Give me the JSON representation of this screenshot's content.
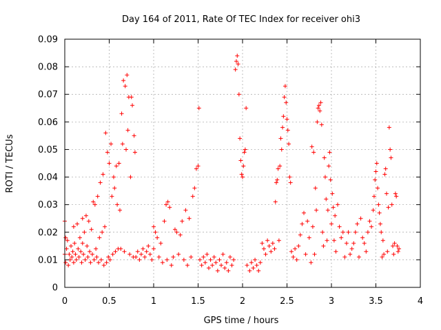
{
  "chart_data": {
    "type": "scatter",
    "title": "Day 164 of 2011, Rate Of TEC Index for receiver ohi3",
    "xlabel": "GPS time / hours",
    "ylabel": "ROTI / TECUs",
    "xlim": [
      0,
      4
    ],
    "ylim": [
      0,
      0.09
    ],
    "x_ticks": [
      "0",
      "0.5",
      "1",
      "1.5",
      "2",
      "2.5",
      "3",
      "3.5",
      "4"
    ],
    "y_ticks": [
      "0",
      "0.01",
      "0.02",
      "0.03",
      "0.04",
      "0.05",
      "0.06",
      "0.07",
      "0.08",
      "0.09"
    ],
    "grid": true,
    "marker": "+",
    "point_color": "#ff0000",
    "series": [
      {
        "name": "ROTI",
        "points": [
          [
            0.0,
            0.024
          ],
          [
            0.0,
            0.012
          ],
          [
            0.01,
            0.018
          ],
          [
            0.01,
            0.009
          ],
          [
            0.02,
            0.014
          ],
          [
            0.03,
            0.017
          ],
          [
            0.04,
            0.008
          ],
          [
            0.05,
            0.012
          ],
          [
            0.06,
            0.01
          ],
          [
            0.07,
            0.015
          ],
          [
            0.08,
            0.011
          ],
          [
            0.09,
            0.013
          ],
          [
            0.1,
            0.022
          ],
          [
            0.1,
            0.009
          ],
          [
            0.11,
            0.016
          ],
          [
            0.12,
            0.012
          ],
          [
            0.13,
            0.01
          ],
          [
            0.14,
            0.023
          ],
          [
            0.15,
            0.014
          ],
          [
            0.16,
            0.011
          ],
          [
            0.17,
            0.018
          ],
          [
            0.18,
            0.013
          ],
          [
            0.19,
            0.009
          ],
          [
            0.2,
            0.025
          ],
          [
            0.2,
            0.016
          ],
          [
            0.21,
            0.012
          ],
          [
            0.22,
            0.02
          ],
          [
            0.23,
            0.01
          ],
          [
            0.24,
            0.026
          ],
          [
            0.25,
            0.015
          ],
          [
            0.26,
            0.011
          ],
          [
            0.27,
            0.024
          ],
          [
            0.28,
            0.013
          ],
          [
            0.29,
            0.009
          ],
          [
            0.3,
            0.021
          ],
          [
            0.31,
            0.012
          ],
          [
            0.32,
            0.031
          ],
          [
            0.33,
            0.01
          ],
          [
            0.34,
            0.03
          ],
          [
            0.35,
            0.014
          ],
          [
            0.36,
            0.011
          ],
          [
            0.37,
            0.033
          ],
          [
            0.38,
            0.009
          ],
          [
            0.39,
            0.018
          ],
          [
            0.4,
            0.038
          ],
          [
            0.41,
            0.01
          ],
          [
            0.42,
            0.02
          ],
          [
            0.43,
            0.041
          ],
          [
            0.44,
            0.008
          ],
          [
            0.45,
            0.022
          ],
          [
            0.46,
            0.056
          ],
          [
            0.47,
            0.009
          ],
          [
            0.48,
            0.049
          ],
          [
            0.49,
            0.011
          ],
          [
            0.5,
            0.045
          ],
          [
            0.51,
            0.01
          ],
          [
            0.52,
            0.052
          ],
          [
            0.53,
            0.033
          ],
          [
            0.54,
            0.012
          ],
          [
            0.55,
            0.04
          ],
          [
            0.56,
            0.036
          ],
          [
            0.57,
            0.013
          ],
          [
            0.58,
            0.044
          ],
          [
            0.59,
            0.03
          ],
          [
            0.6,
            0.014
          ],
          [
            0.61,
            0.045
          ],
          [
            0.62,
            0.028
          ],
          [
            0.63,
            0.014
          ],
          [
            0.64,
            0.063
          ],
          [
            0.65,
            0.052
          ],
          [
            0.66,
            0.075
          ],
          [
            0.67,
            0.013
          ],
          [
            0.68,
            0.073
          ],
          [
            0.69,
            0.05
          ],
          [
            0.7,
            0.077
          ],
          [
            0.71,
            0.057
          ],
          [
            0.72,
            0.069
          ],
          [
            0.73,
            0.012
          ],
          [
            0.74,
            0.04
          ],
          [
            0.75,
            0.069
          ],
          [
            0.76,
            0.066
          ],
          [
            0.77,
            0.011
          ],
          [
            0.78,
            0.055
          ],
          [
            0.79,
            0.049
          ],
          [
            0.8,
            0.011
          ],
          [
            0.82,
            0.013
          ],
          [
            0.84,
            0.01
          ],
          [
            0.86,
            0.012
          ],
          [
            0.88,
            0.014
          ],
          [
            0.9,
            0.011
          ],
          [
            0.92,
            0.013
          ],
          [
            0.94,
            0.015
          ],
          [
            0.96,
            0.012
          ],
          [
            0.98,
            0.01
          ],
          [
            1.0,
            0.014
          ],
          [
            1.0,
            0.022
          ],
          [
            1.02,
            0.02
          ],
          [
            1.04,
            0.018
          ],
          [
            1.06,
            0.011
          ],
          [
            1.08,
            0.016
          ],
          [
            1.1,
            0.009
          ],
          [
            1.12,
            0.024
          ],
          [
            1.14,
            0.03
          ],
          [
            1.15,
            0.01
          ],
          [
            1.16,
            0.031
          ],
          [
            1.18,
            0.029
          ],
          [
            1.2,
            0.008
          ],
          [
            1.22,
            0.011
          ],
          [
            1.24,
            0.021
          ],
          [
            1.26,
            0.02
          ],
          [
            1.28,
            0.012
          ],
          [
            1.3,
            0.019
          ],
          [
            1.32,
            0.024
          ],
          [
            1.34,
            0.01
          ],
          [
            1.36,
            0.028
          ],
          [
            1.38,
            0.008
          ],
          [
            1.4,
            0.025
          ],
          [
            1.42,
            0.011
          ],
          [
            1.44,
            0.033
          ],
          [
            1.46,
            0.036
          ],
          [
            1.48,
            0.043
          ],
          [
            1.5,
            0.044
          ],
          [
            1.51,
            0.065
          ],
          [
            1.52,
            0.01
          ],
          [
            1.54,
            0.008
          ],
          [
            1.56,
            0.011
          ],
          [
            1.58,
            0.009
          ],
          [
            1.6,
            0.012
          ],
          [
            1.62,
            0.007
          ],
          [
            1.64,
            0.01
          ],
          [
            1.66,
            0.008
          ],
          [
            1.68,
            0.011
          ],
          [
            1.7,
            0.009
          ],
          [
            1.72,
            0.006
          ],
          [
            1.74,
            0.01
          ],
          [
            1.76,
            0.008
          ],
          [
            1.78,
            0.012
          ],
          [
            1.8,
            0.007
          ],
          [
            1.82,
            0.009
          ],
          [
            1.84,
            0.006
          ],
          [
            1.86,
            0.011
          ],
          [
            1.88,
            0.008
          ],
          [
            1.9,
            0.01
          ],
          [
            1.92,
            0.079
          ],
          [
            1.93,
            0.082
          ],
          [
            1.94,
            0.084
          ],
          [
            1.95,
            0.081
          ],
          [
            1.96,
            0.07
          ],
          [
            1.97,
            0.054
          ],
          [
            1.98,
            0.046
          ],
          [
            1.99,
            0.041
          ],
          [
            2.0,
            0.04
          ],
          [
            2.01,
            0.044
          ],
          [
            2.02,
            0.049
          ],
          [
            2.03,
            0.05
          ],
          [
            2.04,
            0.065
          ],
          [
            2.05,
            0.008
          ],
          [
            2.08,
            0.006
          ],
          [
            2.1,
            0.009
          ],
          [
            2.12,
            0.007
          ],
          [
            2.14,
            0.01
          ],
          [
            2.16,
            0.008
          ],
          [
            2.18,
            0.006
          ],
          [
            2.2,
            0.009
          ],
          [
            2.22,
            0.016
          ],
          [
            2.24,
            0.014
          ],
          [
            2.26,
            0.012
          ],
          [
            2.28,
            0.017
          ],
          [
            2.3,
            0.015
          ],
          [
            2.32,
            0.013
          ],
          [
            2.34,
            0.016
          ],
          [
            2.36,
            0.014
          ],
          [
            2.37,
            0.031
          ],
          [
            2.38,
            0.038
          ],
          [
            2.39,
            0.039
          ],
          [
            2.4,
            0.043
          ],
          [
            2.41,
            0.017
          ],
          [
            2.42,
            0.044
          ],
          [
            2.43,
            0.054
          ],
          [
            2.44,
            0.05
          ],
          [
            2.45,
            0.058
          ],
          [
            2.46,
            0.062
          ],
          [
            2.47,
            0.069
          ],
          [
            2.48,
            0.073
          ],
          [
            2.49,
            0.067
          ],
          [
            2.5,
            0.061
          ],
          [
            2.51,
            0.057
          ],
          [
            2.52,
            0.052
          ],
          [
            2.53,
            0.04
          ],
          [
            2.54,
            0.038
          ],
          [
            2.55,
            0.013
          ],
          [
            2.57,
            0.011
          ],
          [
            2.59,
            0.014
          ],
          [
            2.61,
            0.01
          ],
          [
            2.63,
            0.015
          ],
          [
            2.65,
            0.019
          ],
          [
            2.67,
            0.023
          ],
          [
            2.69,
            0.027
          ],
          [
            2.71,
            0.012
          ],
          [
            2.73,
            0.024
          ],
          [
            2.75,
            0.018
          ],
          [
            2.77,
            0.009
          ],
          [
            2.78,
            0.051
          ],
          [
            2.79,
            0.022
          ],
          [
            2.8,
            0.049
          ],
          [
            2.81,
            0.012
          ],
          [
            2.82,
            0.036
          ],
          [
            2.83,
            0.028
          ],
          [
            2.84,
            0.06
          ],
          [
            2.85,
            0.065
          ],
          [
            2.86,
            0.066
          ],
          [
            2.87,
            0.064
          ],
          [
            2.88,
            0.067
          ],
          [
            2.89,
            0.059
          ],
          [
            2.9,
            0.02
          ],
          [
            2.91,
            0.015
          ],
          [
            2.92,
            0.047
          ],
          [
            2.93,
            0.04
          ],
          [
            2.94,
            0.032
          ],
          [
            2.95,
            0.017
          ],
          [
            2.96,
            0.028
          ],
          [
            2.97,
            0.044
          ],
          [
            2.98,
            0.049
          ],
          [
            2.99,
            0.039
          ],
          [
            3.0,
            0.023
          ],
          [
            3.01,
            0.034
          ],
          [
            3.02,
            0.029
          ],
          [
            3.03,
            0.017
          ],
          [
            3.04,
            0.026
          ],
          [
            3.05,
            0.013
          ],
          [
            3.07,
            0.03
          ],
          [
            3.09,
            0.022
          ],
          [
            3.11,
            0.018
          ],
          [
            3.13,
            0.02
          ],
          [
            3.15,
            0.011
          ],
          [
            3.17,
            0.016
          ],
          [
            3.19,
            0.02
          ],
          [
            3.21,
            0.012
          ],
          [
            3.23,
            0.014
          ],
          [
            3.25,
            0.016
          ],
          [
            3.27,
            0.02
          ],
          [
            3.29,
            0.023
          ],
          [
            3.31,
            0.011
          ],
          [
            3.33,
            0.025
          ],
          [
            3.35,
            0.018
          ],
          [
            3.37,
            0.016
          ],
          [
            3.39,
            0.013
          ],
          [
            3.41,
            0.02
          ],
          [
            3.43,
            0.024
          ],
          [
            3.45,
            0.022
          ],
          [
            3.47,
            0.028
          ],
          [
            3.48,
            0.033
          ],
          [
            3.49,
            0.039
          ],
          [
            3.5,
            0.042
          ],
          [
            3.51,
            0.045
          ],
          [
            3.52,
            0.036
          ],
          [
            3.53,
            0.03
          ],
          [
            3.54,
            0.027
          ],
          [
            3.55,
            0.023
          ],
          [
            3.56,
            0.02
          ],
          [
            3.57,
            0.011
          ],
          [
            3.58,
            0.017
          ],
          [
            3.59,
            0.012
          ],
          [
            3.6,
            0.041
          ],
          [
            3.61,
            0.043
          ],
          [
            3.62,
            0.034
          ],
          [
            3.63,
            0.013
          ],
          [
            3.64,
            0.029
          ],
          [
            3.65,
            0.058
          ],
          [
            3.66,
            0.05
          ],
          [
            3.67,
            0.047
          ],
          [
            3.68,
            0.03
          ],
          [
            3.69,
            0.015
          ],
          [
            3.7,
            0.012
          ],
          [
            3.71,
            0.016
          ],
          [
            3.72,
            0.034
          ],
          [
            3.73,
            0.033
          ],
          [
            3.74,
            0.015
          ],
          [
            3.75,
            0.013
          ],
          [
            3.76,
            0.014
          ]
        ]
      }
    ]
  }
}
